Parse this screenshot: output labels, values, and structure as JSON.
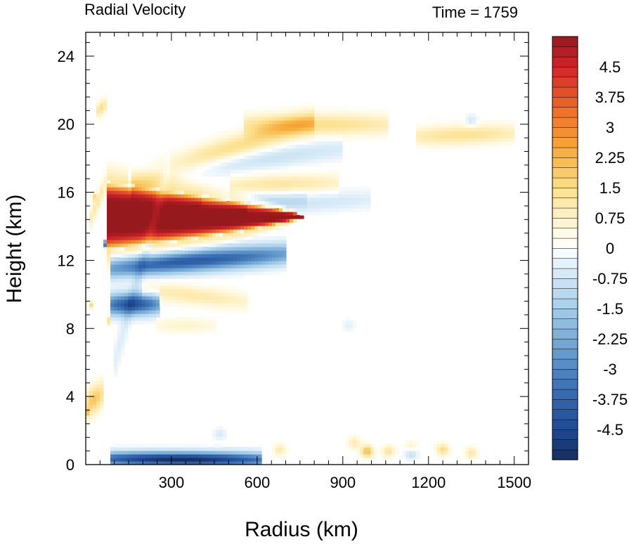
{
  "chart_data": {
    "type": "heatmap",
    "title_left": "Radial Velocity",
    "title_right": "Time = 1759",
    "xlabel": "Radius (km)",
    "ylabel": "Height (km)",
    "xlim": [
      0,
      1550
    ],
    "ylim": [
      0,
      25.4
    ],
    "x_ticks": [
      {
        "value": 300,
        "label": "300"
      },
      {
        "value": 600,
        "label": "600"
      },
      {
        "value": 900,
        "label": "900"
      },
      {
        "value": 1200,
        "label": "1200"
      },
      {
        "value": 1500,
        "label": "1500"
      }
    ],
    "y_ticks": [
      {
        "value": 0,
        "label": "0"
      },
      {
        "value": 4,
        "label": "4"
      },
      {
        "value": 8,
        "label": "8"
      },
      {
        "value": 12,
        "label": "12"
      },
      {
        "value": 16,
        "label": "16"
      },
      {
        "value": 20,
        "label": "20"
      },
      {
        "value": 24,
        "label": "24"
      }
    ],
    "colorbar": {
      "levels": [
        -5.25,
        -5,
        -4.75,
        -4.5,
        -4.25,
        -4,
        -3.75,
        -3.5,
        -3.25,
        -3,
        -2.75,
        -2.5,
        -2.25,
        -2,
        -1.75,
        -1.5,
        -1.25,
        -1,
        -0.75,
        -0.5,
        -0.25,
        0,
        0.25,
        0.5,
        0.75,
        1,
        1.25,
        1.5,
        1.75,
        2,
        2.25,
        2.5,
        2.75,
        3,
        3.25,
        3.5,
        3.75,
        4,
        4.25,
        4.5,
        4.75,
        5,
        5.25
      ],
      "labels": [
        {
          "value": 4.5,
          "text": "4.5"
        },
        {
          "value": 3.75,
          "text": "3.75"
        },
        {
          "value": 3,
          "text": "3"
        },
        {
          "value": 2.25,
          "text": "2.25"
        },
        {
          "value": 1.5,
          "text": "1.5"
        },
        {
          "value": 0.75,
          "text": "0.75"
        },
        {
          "value": 0,
          "text": "0"
        },
        {
          "value": -0.75,
          "text": "-0.75"
        },
        {
          "value": -1.5,
          "text": "-1.5"
        },
        {
          "value": -2.25,
          "text": "-2.25"
        },
        {
          "value": -3,
          "text": "-3"
        },
        {
          "value": -3.75,
          "text": "-3.75"
        },
        {
          "value": -4.5,
          "text": "-4.5"
        }
      ],
      "color_stops": [
        {
          "v": -5.25,
          "c": "#172c5e"
        },
        {
          "v": -4.5,
          "c": "#1f4a94"
        },
        {
          "v": -3.5,
          "c": "#3a6fb3"
        },
        {
          "v": -2.5,
          "c": "#6aa0d0"
        },
        {
          "v": -1.5,
          "c": "#a6cde8"
        },
        {
          "v": -0.5,
          "c": "#dcedf8"
        },
        {
          "v": 0,
          "c": "#ffffff"
        },
        {
          "v": 0.5,
          "c": "#fff8dc"
        },
        {
          "v": 1.5,
          "c": "#fbe08c"
        },
        {
          "v": 2.5,
          "c": "#f6a936"
        },
        {
          "v": 3.5,
          "c": "#ec6a2a"
        },
        {
          "v": 4.5,
          "c": "#d0242a"
        },
        {
          "v": 5.25,
          "c": "#96191d"
        }
      ]
    },
    "field_features": [
      {
        "kind": "outflow_jet",
        "r_start": 70,
        "r_end": 760,
        "z_center": 14.6,
        "half_thickness_at_start": 2.0,
        "value": 5.5
      },
      {
        "kind": "band",
        "r_start": 80,
        "r_end": 700,
        "z_start": 11.6,
        "z_end": 12.4,
        "thickness": 0.9,
        "value": -4.0
      },
      {
        "kind": "band",
        "r_start": 80,
        "r_end": 260,
        "z_start": 9.4,
        "z_end": 9.5,
        "thickness": 0.9,
        "value": -4.2
      },
      {
        "kind": "band",
        "r_start": 160,
        "r_end": 800,
        "z_start": 16.6,
        "z_end": 20.2,
        "thickness": 1.1,
        "value": 1.6
      },
      {
        "kind": "band",
        "r_start": 550,
        "r_end": 1060,
        "z_start": 20.0,
        "z_end": 20.0,
        "thickness": 0.9,
        "value": 1.5
      },
      {
        "kind": "band",
        "r_start": 1160,
        "r_end": 1500,
        "z_start": 19.3,
        "z_end": 19.5,
        "thickness": 0.8,
        "value": 1.4
      },
      {
        "kind": "band",
        "r_start": 500,
        "r_end": 880,
        "z_start": 16.4,
        "z_end": 16.6,
        "thickness": 0.8,
        "value": 1.2
      },
      {
        "kind": "band",
        "r_start": 150,
        "r_end": 900,
        "z_start": 17.0,
        "z_end": 18.6,
        "thickness": 0.9,
        "value": -0.9
      },
      {
        "kind": "band",
        "r_start": 400,
        "r_end": 780,
        "z_start": 15.6,
        "z_end": 15.6,
        "thickness": 0.6,
        "value": -0.7
      },
      {
        "kind": "band",
        "r_start": 560,
        "r_end": 1000,
        "z_start": 15.2,
        "z_end": 15.6,
        "thickness": 0.8,
        "value": -0.7
      },
      {
        "kind": "band",
        "r_start": 200,
        "r_end": 560,
        "z_start": 10.3,
        "z_end": 9.6,
        "thickness": 0.8,
        "value": 1.1
      },
      {
        "kind": "band",
        "r_start": 250,
        "r_end": 450,
        "z_start": 8.2,
        "z_end": 8.2,
        "thickness": 0.6,
        "value": 0.7
      },
      {
        "kind": "band",
        "r_start": 80,
        "r_end": 620,
        "z_start": 0.35,
        "z_end": 0.3,
        "thickness": 0.6,
        "value": -5.2
      },
      {
        "kind": "band",
        "r_start": 5,
        "r_end": 40,
        "z_start": 2.5,
        "z_end": 20.5,
        "thickness": 0.3,
        "value": 1.6
      },
      {
        "kind": "band",
        "r_start": 40,
        "r_end": 70,
        "z_start": 20.8,
        "z_end": 21.2,
        "thickness": 0.6,
        "value": 1.5
      },
      {
        "kind": "band",
        "r_start": 0,
        "r_end": 60,
        "z_start": 3.5,
        "z_end": 4.2,
        "thickness": 1.2,
        "value": 2.0
      },
      {
        "kind": "band",
        "r_start": 10,
        "r_end": 70,
        "z_start": 14.2,
        "z_end": 16.6,
        "thickness": 0.8,
        "value": 1.2
      },
      {
        "kind": "band",
        "r_start": 60,
        "r_end": 70,
        "z_start": 0.5,
        "z_end": 16.8,
        "thickness": 0.25,
        "value": -4.5
      },
      {
        "kind": "band",
        "r_start": 70,
        "r_end": 90,
        "z_start": 1.0,
        "z_end": 16.0,
        "thickness": 0.3,
        "value": 1.5
      },
      {
        "kind": "band",
        "r_start": 100,
        "r_end": 300,
        "z_start": 6.0,
        "z_end": 18.0,
        "thickness": 1.5,
        "value": -0.6
      },
      {
        "kind": "blob",
        "r": 470,
        "z": 1.8,
        "value": -0.6
      },
      {
        "kind": "blob",
        "r": 680,
        "z": 0.9,
        "value": 1.1
      },
      {
        "kind": "blob",
        "r": 940,
        "z": 1.3,
        "value": 1.1
      },
      {
        "kind": "blob",
        "r": 985,
        "z": 0.8,
        "value": 2.2
      },
      {
        "kind": "blob",
        "r": 1060,
        "z": 0.8,
        "value": 1.3
      },
      {
        "kind": "blob",
        "r": 1140,
        "z": 1.0,
        "value": 1.1
      },
      {
        "kind": "blob",
        "r": 1250,
        "z": 0.9,
        "value": 1.6
      },
      {
        "kind": "blob",
        "r": 1350,
        "z": 0.7,
        "value": 1.2
      },
      {
        "kind": "blob",
        "r": 1140,
        "z": 0.7,
        "value": -1.3
      },
      {
        "kind": "blob",
        "r": 920,
        "z": 8.2,
        "value": -0.4
      },
      {
        "kind": "blob",
        "r": 1350,
        "z": 20.2,
        "value": -0.8
      }
    ]
  }
}
